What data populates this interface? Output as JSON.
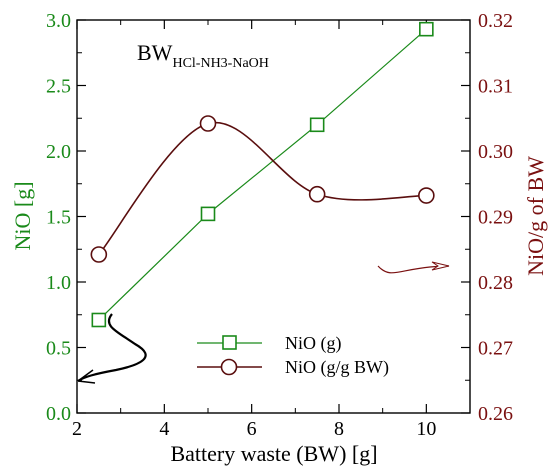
{
  "chart_data": {
    "type": "line",
    "xlabel": "Battery waste (BW) [g]",
    "x_ticks": [
      "2",
      "4",
      "6",
      "8",
      "10"
    ],
    "xlim": [
      2,
      11
    ],
    "y_left": {
      "label": "NiO [g]",
      "color": "#1a8a1a",
      "ylim": [
        0.0,
        3.0
      ],
      "ticks": [
        "0.0",
        "0.5",
        "1.0",
        "1.5",
        "2.0",
        "2.5",
        "3.0"
      ]
    },
    "y_right": {
      "label": "NiO/g of BW",
      "color": "#7a1010",
      "ylim": [
        0.26,
        0.32
      ],
      "ticks": [
        "0.26",
        "0.27",
        "0.28",
        "0.29",
        "0.30",
        "0.31",
        "0.32"
      ]
    },
    "series": [
      {
        "name": "NiO (g)",
        "axis": "left",
        "marker": "square",
        "color": "#1a8a1a",
        "x": [
          2.5,
          5,
          7.5,
          10
        ],
        "y": [
          0.71,
          1.52,
          2.2,
          2.93
        ]
      },
      {
        "name": "NiO (g/g BW)",
        "axis": "right",
        "marker": "circle",
        "color": "#5a0e0e",
        "x": [
          2.5,
          5,
          7.5,
          10
        ],
        "y": [
          0.2842,
          0.3042,
          0.2934,
          0.2932
        ]
      }
    ],
    "annotation": {
      "main": "BW",
      "subscript": "HCl-NH3-NaOH"
    },
    "legend_position": "lower-right",
    "grid": false
  }
}
